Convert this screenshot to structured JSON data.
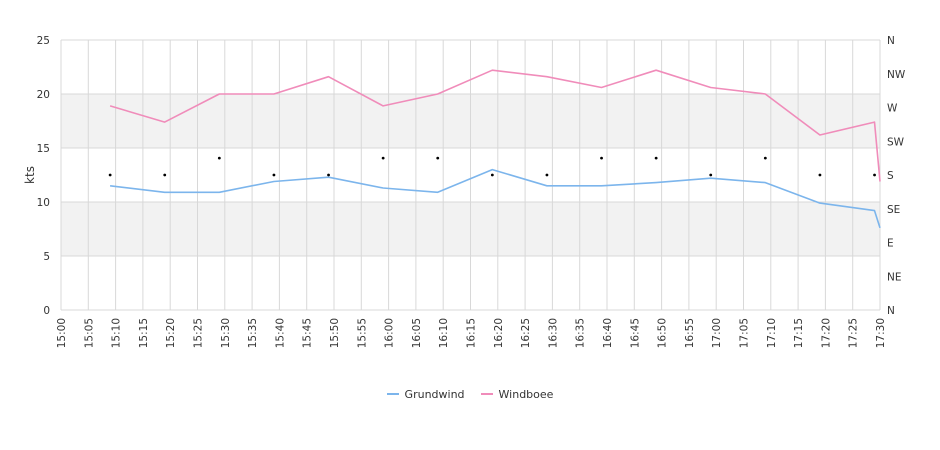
{
  "chart_data": {
    "type": "line",
    "xlabel": "",
    "ylabel": "kts",
    "ylim": [
      0,
      25
    ],
    "xlim": [
      "15:00",
      "17:30"
    ],
    "y_ticks": [
      "0",
      "5",
      "10",
      "15",
      "20",
      "25"
    ],
    "x_ticks": [
      "15:00",
      "15:05",
      "15:10",
      "15:15",
      "15:20",
      "15:25",
      "15:30",
      "15:35",
      "15:40",
      "15:45",
      "15:50",
      "15:55",
      "16:00",
      "16:05",
      "16:10",
      "16:15",
      "16:20",
      "16:25",
      "16:30",
      "16:35",
      "16:40",
      "16:45",
      "16:50",
      "16:55",
      "17:00",
      "17:05",
      "17:10",
      "17:15",
      "17:20",
      "17:25",
      "17:30"
    ],
    "y2_ticks": [
      "N",
      "NE",
      "E",
      "SE",
      "S",
      "SW",
      "W",
      "NW",
      "N"
    ],
    "grid": true,
    "legend_position": "bottom",
    "series": [
      {
        "name": "Grundwind",
        "color": "#7cb5ec",
        "x": [
          "15:09",
          "15:19",
          "15:29",
          "15:39",
          "15:49",
          "15:59",
          "16:09",
          "16:19",
          "16:29",
          "16:39",
          "16:49",
          "16:59",
          "17:09",
          "17:19",
          "17:29",
          "17:30"
        ],
        "values": [
          11.5,
          10.9,
          10.9,
          11.9,
          12.3,
          11.3,
          10.9,
          13.0,
          11.5,
          11.5,
          11.8,
          12.2,
          11.8,
          9.9,
          9.2,
          7.6
        ]
      },
      {
        "name": "Windboee",
        "color": "#f08cba",
        "x": [
          "15:09",
          "15:19",
          "15:29",
          "15:39",
          "15:49",
          "15:59",
          "16:09",
          "16:19",
          "16:29",
          "16:39",
          "16:49",
          "16:59",
          "17:09",
          "17:19",
          "17:29",
          "17:30"
        ],
        "values": [
          18.9,
          17.4,
          20.0,
          20.0,
          21.6,
          18.9,
          20.0,
          22.2,
          21.6,
          20.6,
          22.2,
          20.6,
          20.0,
          16.2,
          17.4,
          11.9
        ]
      }
    ],
    "direction": {
      "x": [
        "15:09",
        "15:19",
        "15:29",
        "15:39",
        "15:49",
        "15:59",
        "16:09",
        "16:19",
        "16:29",
        "16:39",
        "16:49",
        "16:59",
        "17:09",
        "17:19",
        "17:29"
      ],
      "values": [
        "S",
        "S",
        "SSW",
        "S",
        "S",
        "SSW",
        "SSW",
        "S",
        "S",
        "SSW",
        "SSW",
        "S",
        "SSW",
        "S",
        "S"
      ]
    }
  }
}
